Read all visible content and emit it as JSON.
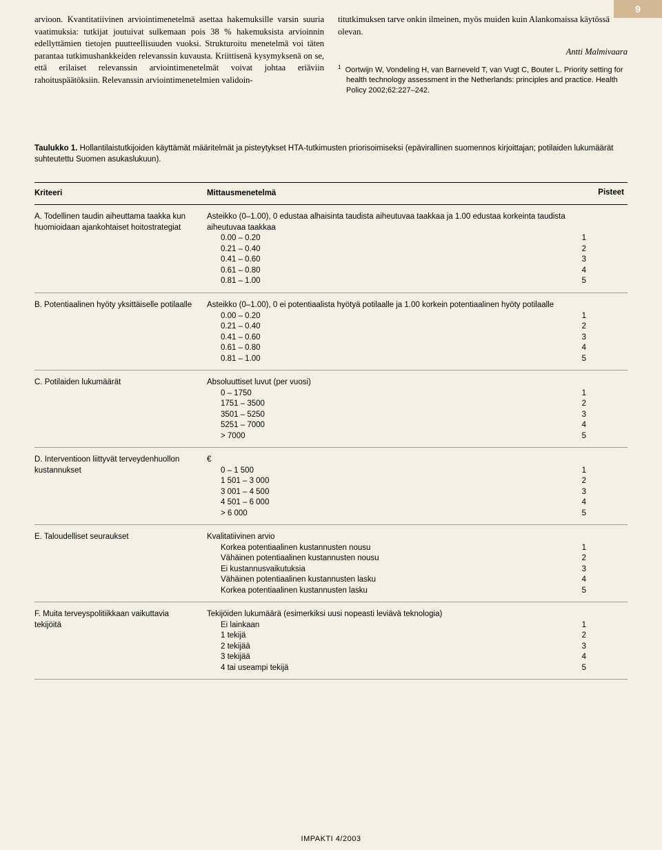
{
  "page_number": "9",
  "columns": {
    "left_text": "arvioon. Kvantitatiivinen arviointimenetelmä asettaa hakemuksille varsin suuria vaatimuksia: tutkijat joutuivat sulkemaan pois 38 % hakemuksista arvioinnin edellyttämien tietojen puutteellisuuden vuoksi. Strukturoitu menetelmä voi täten parantaa tutkimushankkeiden relevanssin kuvausta. Kriittisenä kysymyksenä on se, että erilaiset relevanssin arviointimenetelmät voivat johtaa eriäviin rahoituspäätöksiin. Relevanssin arviointimenetelmien validoin-",
    "right_text": "titutkimuksen tarve onkin ilmeinen, myös muiden kuin Alankomaissa käytössä olevan.",
    "author": "Antti Malmivaara",
    "reference": "Oortwijn W, Vondeling H, van Barneveld T, van Vugt C, Bouter L. Priority setting for health technology assessment in the Netherlands: principles and practice. Health Policy 2002;62:227–242."
  },
  "table": {
    "caption_label": "Taulukko 1.",
    "caption_text": " Hollantilaistutkijoiden käyttämät määritelmät ja pisteytykset HTA-tutkimusten priorisoimiseksi (epävirallinen suomennos kirjoittajan; potilaiden lukumäärät suhteutettu Suomen asukaslukuun).",
    "headers": {
      "c1": "Kriteeri",
      "c2": "Mittausmenetelmä",
      "c3": "Pisteet"
    },
    "rows": [
      {
        "criterion": "A. Todellinen taudin aiheuttama taakka kun huomioidaan ajankohtaiset hoitostrategiat",
        "intro": "Asteikko (0–1.00), 0 edustaa alhaisinta taudista aiheutuvaa taakkaa ja 1.00 edustaa korkeinta taudista aiheutuvaa taakkaa",
        "items": [
          {
            "t": "0.00  –  0.20",
            "p": "1"
          },
          {
            "t": "0.21  –  0.40",
            "p": "2"
          },
          {
            "t": "0.41  –  0.60",
            "p": "3"
          },
          {
            "t": "0.61  –  0.80",
            "p": "4"
          },
          {
            "t": "0.81  –  1.00",
            "p": "5"
          }
        ]
      },
      {
        "criterion": "B. Potentiaalinen hyöty yksittäiselle potilaalle",
        "intro": "Asteikko (0–1.00), 0 ei potentiaalista hyötyä potilaalle ja 1.00 korkein potentiaalinen hyöty potilaalle",
        "items": [
          {
            "t": "0.00  –  0.20",
            "p": "1"
          },
          {
            "t": "0.21  –  0.40",
            "p": "2"
          },
          {
            "t": "0.41  –  0.60",
            "p": "3"
          },
          {
            "t": "0.61  –  0.80",
            "p": "4"
          },
          {
            "t": "0.81  –  1.00",
            "p": "5"
          }
        ]
      },
      {
        "criterion": "C. Potilaiden lukumäärät",
        "intro": "Absoluuttiset luvut (per vuosi)",
        "items": [
          {
            "t": "0 – 1750",
            "p": "1"
          },
          {
            "t": "1751 – 3500",
            "p": "2"
          },
          {
            "t": "3501 – 5250",
            "p": "3"
          },
          {
            "t": "5251 – 7000",
            "p": "4"
          },
          {
            "t": "> 7000",
            "p": "5"
          }
        ]
      },
      {
        "criterion": "D. Interventioon liittyvät terveydenhuollon kustannukset",
        "intro": "€",
        "items": [
          {
            "t": "0 – 1 500",
            "p": "1"
          },
          {
            "t": "1 501 – 3 000",
            "p": "2"
          },
          {
            "t": "3 001 – 4 500",
            "p": "3"
          },
          {
            "t": "4 501 – 6 000",
            "p": "4"
          },
          {
            "t": "> 6 000",
            "p": "5"
          }
        ]
      },
      {
        "criterion": "E. Taloudelliset seuraukset",
        "intro": "Kvalitatiivinen arvio",
        "items": [
          {
            "t": "Korkea potentiaalinen kustannusten nousu",
            "p": "1"
          },
          {
            "t": "Vähäinen potentiaalinen kustannusten nousu",
            "p": "2"
          },
          {
            "t": "Ei kustannusvaikutuksia",
            "p": "3"
          },
          {
            "t": "Vähäinen potentiaalinen kustannusten lasku",
            "p": "4"
          },
          {
            "t": "Korkea potentiaalinen kustannusten lasku",
            "p": "5"
          }
        ]
      },
      {
        "criterion": "F. Muita terveyspolitiikkaan vaikuttavia tekijöitä",
        "intro": "Tekijöiden lukumäärä (esimerkiksi uusi nopeasti leviävä teknologia)",
        "items": [
          {
            "t": "Ei lainkaan",
            "p": "1"
          },
          {
            "t": "1 tekijä",
            "p": "2"
          },
          {
            "t": "2 tekijää",
            "p": "3"
          },
          {
            "t": "3 tekijää",
            "p": "4"
          },
          {
            "t": "4 tai useampi tekijä",
            "p": "5"
          }
        ]
      }
    ]
  },
  "footer": "IMPAKTI  4/2003"
}
